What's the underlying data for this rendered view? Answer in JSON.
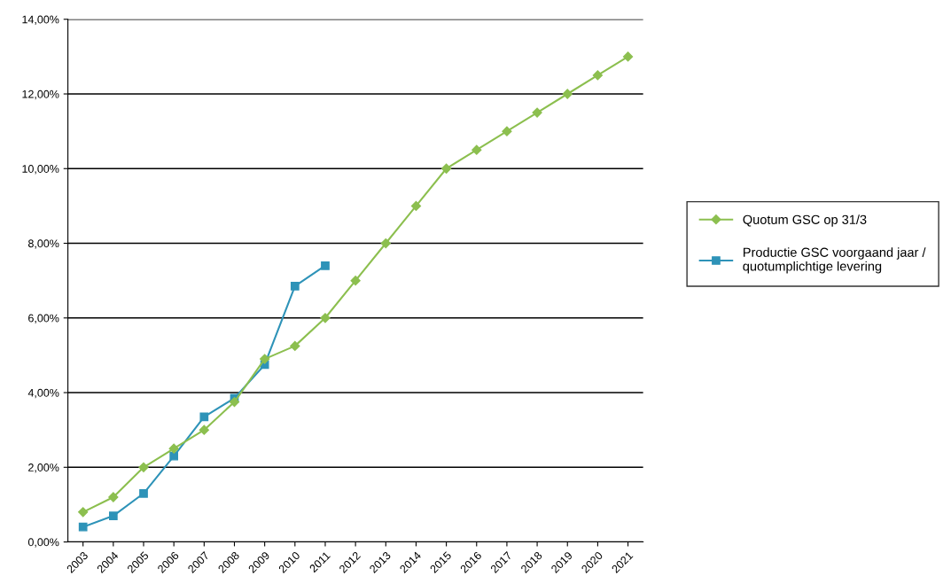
{
  "chart_data": {
    "type": "line",
    "categories": [
      "2003",
      "2004",
      "2005",
      "2006",
      "2007",
      "2008",
      "2009",
      "2010",
      "2011",
      "2012",
      "2013",
      "2014",
      "2015",
      "2016",
      "2017",
      "2018",
      "2019",
      "2020",
      "2021"
    ],
    "series": [
      {
        "name": "Quotum GSC op 31/3",
        "color": "#8cbf4f",
        "marker": "diamond",
        "values": [
          0.8,
          1.2,
          2.0,
          2.5,
          3.0,
          3.75,
          4.9,
          5.25,
          6.0,
          7.0,
          8.0,
          9.0,
          10.0,
          10.5,
          11.0,
          11.5,
          12.0,
          12.5,
          13.0
        ]
      },
      {
        "name": "Productie GSC voorgaand jaar /\nquotumplichtige levering",
        "color": "#2e93b8",
        "marker": "square",
        "values": [
          0.4,
          0.7,
          1.3,
          2.3,
          3.35,
          3.85,
          4.75,
          6.85,
          7.4,
          null,
          null,
          null,
          null,
          null,
          null,
          null,
          null,
          null,
          null
        ]
      }
    ],
    "ylim": [
      0,
      14
    ],
    "yticks": [
      {
        "value": 0,
        "label": "0,00%"
      },
      {
        "value": 2,
        "label": "2,00%"
      },
      {
        "value": 4,
        "label": "4,00%"
      },
      {
        "value": 6,
        "label": "6,00%"
      },
      {
        "value": 8,
        "label": "8,00%"
      },
      {
        "value": 10,
        "label": "10,00%"
      },
      {
        "value": 12,
        "label": "12,00%"
      },
      {
        "value": 14,
        "label": "14,00%"
      }
    ],
    "grid": "y",
    "legend": "right",
    "line_style": "solid"
  }
}
